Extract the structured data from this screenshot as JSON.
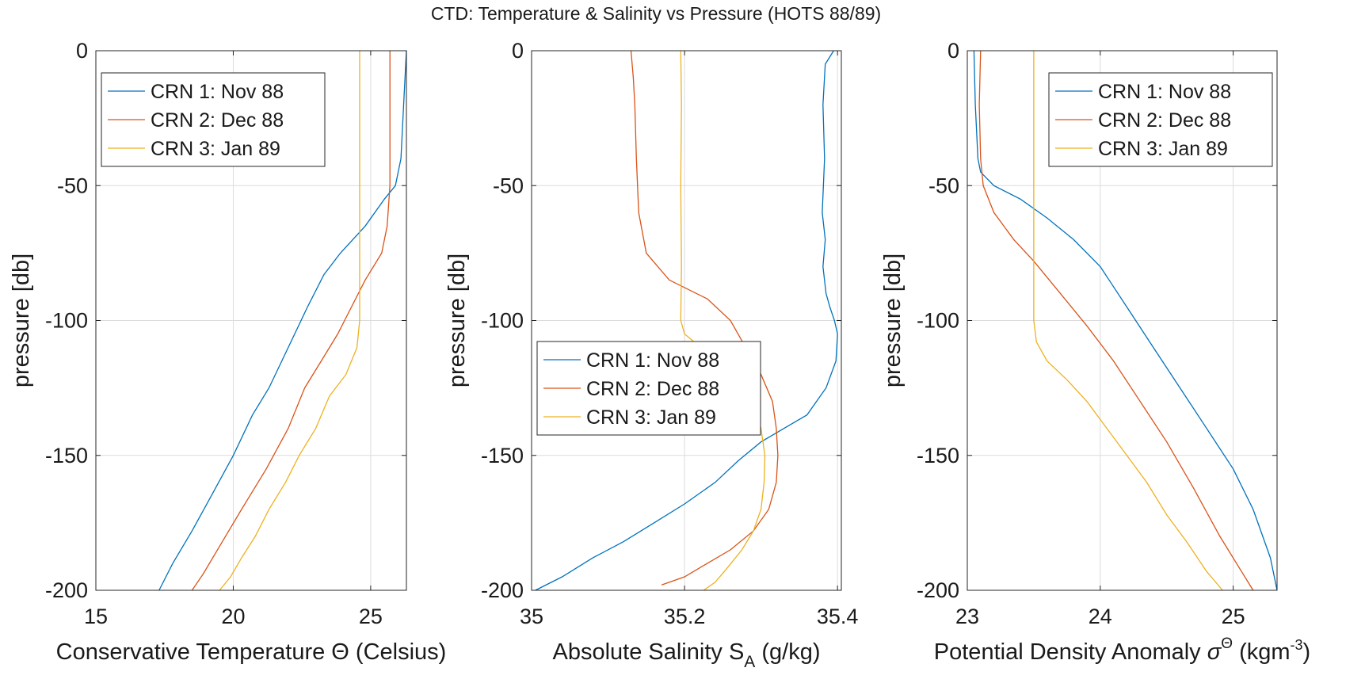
{
  "figure_title": "CTD: Temperature & Salinity vs Pressure (HOTS 88/89)",
  "chart_data": [
    {
      "type": "line",
      "xlabel_parts": [
        "Conservative Temperature ",
        "Θ",
        " (Celsius)"
      ],
      "ylabel": "pressure [db]",
      "xlim": [
        15,
        26.3
      ],
      "ylim": [
        -200,
        0
      ],
      "xticks": [
        15,
        20,
        25
      ],
      "xtick_labels": [
        "15",
        "20",
        "25"
      ],
      "yticks": [
        0,
        -50,
        -100,
        -150,
        -200
      ],
      "ytick_labels": [
        "0",
        "-50",
        "-100",
        "-150",
        "-200"
      ],
      "grid": true,
      "legend_position": "top-left",
      "series": [
        {
          "name": "CRN 1: Nov 88",
          "color": "#0072BD",
          "x": [
            26.3,
            26.2,
            26.1,
            25.9,
            25.5,
            24.8,
            23.9,
            23.3,
            22.7,
            22.0,
            21.3,
            20.7,
            20.0,
            19.2,
            18.5,
            17.8,
            17.3
          ],
          "y": [
            0,
            -20,
            -40,
            -50,
            -55,
            -65,
            -75,
            -83,
            -95,
            -110,
            -125,
            -135,
            -150,
            -165,
            -178,
            -190,
            -200
          ]
        },
        {
          "name": "CRN 2: Dec 88",
          "color": "#D95319",
          "x": [
            25.7,
            25.7,
            25.7,
            25.6,
            25.4,
            24.8,
            24.3,
            23.8,
            23.2,
            22.6,
            22.0,
            21.2,
            20.3,
            19.6,
            18.9,
            18.5
          ],
          "y": [
            0,
            -20,
            -50,
            -65,
            -75,
            -85,
            -95,
            -105,
            -115,
            -125,
            -140,
            -155,
            -170,
            -182,
            -194,
            -200
          ]
        },
        {
          "name": "CRN 3: Jan 89",
          "color": "#EDB120",
          "x": [
            24.6,
            24.6,
            24.6,
            24.6,
            24.5,
            24.1,
            23.5,
            23.0,
            22.4,
            21.9,
            21.3,
            20.8,
            20.3,
            19.9,
            19.5
          ],
          "y": [
            0,
            -30,
            -70,
            -100,
            -110,
            -120,
            -128,
            -140,
            -150,
            -160,
            -170,
            -180,
            -188,
            -195,
            -200
          ]
        }
      ]
    },
    {
      "type": "line",
      "xlabel_parts": [
        "Absolute Salinity S",
        "A",
        " (g/kg)"
      ],
      "ylabel": "pressure [db]",
      "xlim": [
        35.0,
        35.405
      ],
      "ylim": [
        -200,
        0
      ],
      "xticks": [
        35.0,
        35.2,
        35.4
      ],
      "xtick_labels": [
        "35",
        "35.2",
        "35.4"
      ],
      "yticks": [
        0,
        -50,
        -100,
        -150,
        -200
      ],
      "ytick_labels": [
        "0",
        "-50",
        "-100",
        "-150",
        "-200"
      ],
      "grid": true,
      "legend_position": "middle-left",
      "series": [
        {
          "name": "CRN 1: Nov 88",
          "color": "#0072BD",
          "x": [
            35.395,
            35.384,
            35.381,
            35.383,
            35.38,
            35.384,
            35.381,
            35.385,
            35.39,
            35.396,
            35.4,
            35.398,
            35.385,
            35.36,
            35.33,
            35.3,
            35.27,
            35.24,
            35.2,
            35.16,
            35.12,
            35.08,
            35.04,
            35.005
          ],
          "y": [
            0,
            -5,
            -20,
            -40,
            -60,
            -70,
            -80,
            -90,
            -95,
            -100,
            -105,
            -115,
            -125,
            -135,
            -140,
            -145,
            -152,
            -160,
            -168,
            -175,
            -182,
            -188,
            -195,
            -200
          ]
        },
        {
          "name": "CRN 2: Dec 88",
          "color": "#D95319",
          "x": [
            35.13,
            35.133,
            35.135,
            35.137,
            35.14,
            35.15,
            35.18,
            35.23,
            35.26,
            35.28,
            35.3,
            35.315,
            35.32,
            35.322,
            35.32,
            35.31,
            35.29,
            35.26,
            35.23,
            35.2,
            35.17
          ],
          "y": [
            0,
            -10,
            -20,
            -40,
            -60,
            -75,
            -85,
            -92,
            -100,
            -110,
            -120,
            -130,
            -140,
            -150,
            -160,
            -170,
            -178,
            -185,
            -190,
            -195,
            -198
          ]
        },
        {
          "name": "CRN 3: Jan 89",
          "color": "#EDB120",
          "x": [
            35.195,
            35.196,
            35.195,
            35.196,
            35.195,
            35.2,
            35.23,
            35.26,
            35.29,
            35.3,
            35.305,
            35.304,
            35.3,
            35.29,
            35.275,
            35.255,
            35.24,
            35.225
          ],
          "y": [
            0,
            -20,
            -50,
            -80,
            -100,
            -105,
            -112,
            -120,
            -130,
            -140,
            -150,
            -160,
            -170,
            -178,
            -185,
            -192,
            -197,
            -200
          ]
        }
      ]
    },
    {
      "type": "line",
      "xlabel_parts": [
        "Potential Density Anomaly ",
        "σ",
        "Θ",
        " (kgm",
        "-3",
        ")"
      ],
      "ylabel": "pressure [db]",
      "xlim": [
        23,
        25.33
      ],
      "ylim": [
        -200,
        0
      ],
      "xticks": [
        23,
        24,
        25
      ],
      "xtick_labels": [
        "23",
        "24",
        "25"
      ],
      "yticks": [
        0,
        -50,
        -100,
        -150,
        -200
      ],
      "ytick_labels": [
        "0",
        "-50",
        "-100",
        "-150",
        "-200"
      ],
      "grid": true,
      "legend_position": "top-right",
      "series": [
        {
          "name": "CRN 1: Nov 88",
          "color": "#0072BD",
          "x": [
            23.05,
            23.06,
            23.08,
            23.1,
            23.2,
            23.4,
            23.6,
            23.8,
            24.0,
            24.2,
            24.4,
            24.6,
            24.8,
            25.0,
            25.15,
            25.28,
            25.33
          ],
          "y": [
            0,
            -20,
            -40,
            -45,
            -50,
            -55,
            -62,
            -70,
            -80,
            -95,
            -110,
            -125,
            -140,
            -155,
            -170,
            -188,
            -200
          ]
        },
        {
          "name": "CRN 2: Dec 88",
          "color": "#D95319",
          "x": [
            23.1,
            23.09,
            23.1,
            23.12,
            23.2,
            23.35,
            23.5,
            23.7,
            23.9,
            24.1,
            24.3,
            24.5,
            24.7,
            24.9,
            25.05,
            25.15
          ],
          "y": [
            0,
            -20,
            -40,
            -50,
            -60,
            -70,
            -78,
            -90,
            -102,
            -115,
            -130,
            -145,
            -162,
            -180,
            -192,
            -200
          ]
        },
        {
          "name": "CRN 3: Jan 89",
          "color": "#EDB120",
          "x": [
            23.5,
            23.5,
            23.5,
            23.5,
            23.52,
            23.6,
            23.75,
            23.9,
            24.05,
            24.2,
            24.35,
            24.5,
            24.65,
            24.8,
            24.92
          ],
          "y": [
            0,
            -30,
            -70,
            -100,
            -108,
            -115,
            -122,
            -130,
            -140,
            -150,
            -160,
            -172,
            -182,
            -193,
            -200
          ]
        }
      ]
    }
  ]
}
